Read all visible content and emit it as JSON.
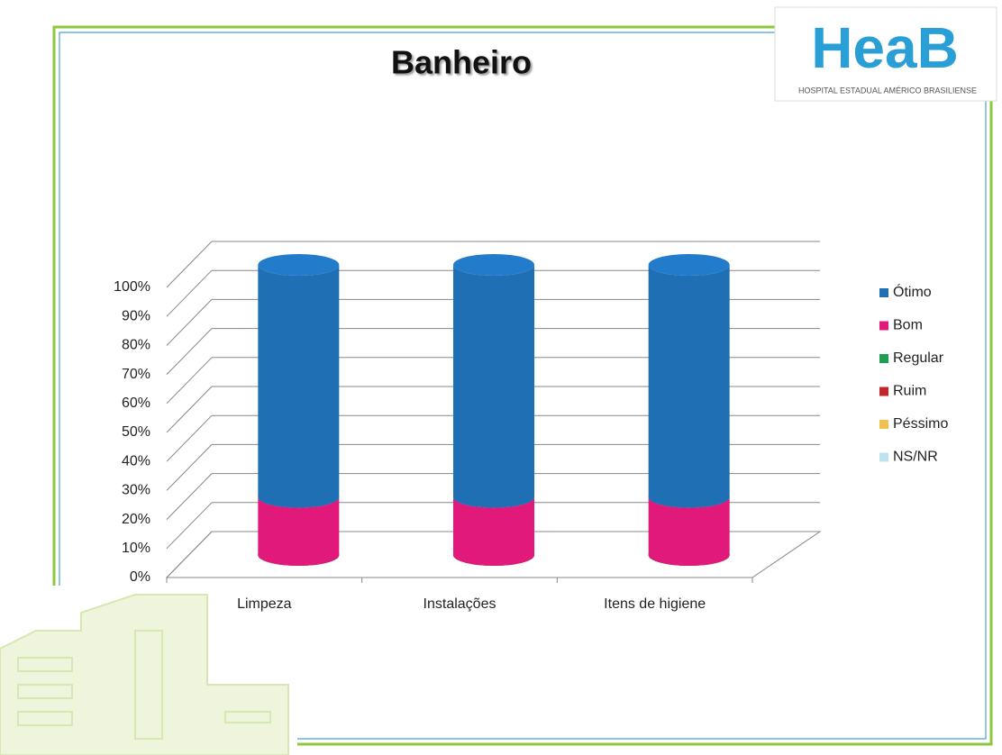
{
  "logo": {
    "name": "HeaB",
    "subtitle": "HOSPITAL ESTADUAL AMÉRICO BRASILIENSE"
  },
  "chart_data": {
    "type": "stacked-cylinder",
    "title": "Banheiro",
    "categories": [
      "Limpeza",
      "Instalações",
      "Itens de higiene"
    ],
    "series": [
      {
        "name": "Ótimo",
        "color": "#1f6fb5",
        "values": [
          80,
          80,
          80
        ]
      },
      {
        "name": "Bom",
        "color": "#e0197a",
        "values": [
          20,
          20,
          20
        ]
      },
      {
        "name": "Regular",
        "color": "#1f9e50",
        "values": [
          0,
          0,
          0
        ]
      },
      {
        "name": "Ruim",
        "color": "#c0262c",
        "values": [
          0,
          0,
          0
        ]
      },
      {
        "name": "Péssimo",
        "color": "#f0c050",
        "values": [
          0,
          0,
          0
        ]
      },
      {
        "name": "NS/NR",
        "color": "#bde3ee",
        "values": [
          0,
          0,
          0
        ]
      }
    ],
    "ylim": [
      0,
      100
    ],
    "yticks": [
      {
        "value": 0,
        "label": "0%"
      },
      {
        "value": 10,
        "label": "10%"
      },
      {
        "value": 20,
        "label": "20%"
      },
      {
        "value": 30,
        "label": "30%"
      },
      {
        "value": 40,
        "label": "40%"
      },
      {
        "value": 50,
        "label": "50%"
      },
      {
        "value": 60,
        "label": "60%"
      },
      {
        "value": 70,
        "label": "70%"
      },
      {
        "value": 80,
        "label": "80%"
      },
      {
        "value": 90,
        "label": "90%"
      },
      {
        "value": 100,
        "label": "100%"
      }
    ],
    "grid": true,
    "legend": "right"
  }
}
